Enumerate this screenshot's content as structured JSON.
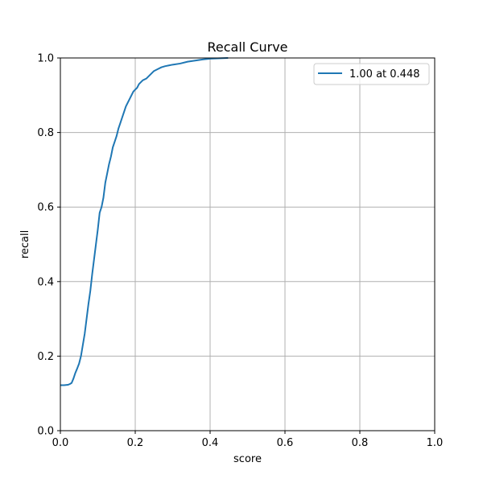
{
  "chart_data": {
    "type": "line",
    "title": "Recall Curve",
    "xlabel": "score",
    "ylabel": "recall",
    "xlim": [
      0.0,
      1.0
    ],
    "ylim": [
      0.0,
      1.0
    ],
    "grid": true,
    "legend_position": "top-right",
    "x_ticks": [
      "0.0",
      "0.2",
      "0.4",
      "0.6",
      "0.8",
      "1.0"
    ],
    "y_ticks": [
      "0.0",
      "0.2",
      "0.4",
      "0.6",
      "0.8",
      "1.0"
    ],
    "series": [
      {
        "name": "1.00 at 0.448",
        "color": "#1f77b4",
        "x": [
          0.0,
          0.01,
          0.02,
          0.025,
          0.03,
          0.035,
          0.04,
          0.045,
          0.05,
          0.055,
          0.06,
          0.065,
          0.07,
          0.075,
          0.08,
          0.085,
          0.09,
          0.095,
          0.1,
          0.105,
          0.11,
          0.115,
          0.12,
          0.125,
          0.13,
          0.135,
          0.14,
          0.145,
          0.15,
          0.155,
          0.16,
          0.165,
          0.17,
          0.175,
          0.18,
          0.185,
          0.19,
          0.195,
          0.2,
          0.205,
          0.21,
          0.22,
          0.23,
          0.24,
          0.25,
          0.26,
          0.27,
          0.28,
          0.29,
          0.3,
          0.32,
          0.34,
          0.36,
          0.38,
          0.4,
          0.42,
          0.448
        ],
        "y": [
          0.122,
          0.122,
          0.123,
          0.125,
          0.128,
          0.14,
          0.155,
          0.167,
          0.18,
          0.2,
          0.23,
          0.26,
          0.3,
          0.34,
          0.375,
          0.42,
          0.46,
          0.5,
          0.54,
          0.585,
          0.6,
          0.625,
          0.665,
          0.69,
          0.715,
          0.735,
          0.76,
          0.775,
          0.79,
          0.81,
          0.825,
          0.84,
          0.855,
          0.87,
          0.88,
          0.89,
          0.9,
          0.91,
          0.915,
          0.92,
          0.93,
          0.94,
          0.945,
          0.955,
          0.965,
          0.97,
          0.975,
          0.978,
          0.98,
          0.982,
          0.985,
          0.99,
          0.993,
          0.996,
          0.998,
          0.999,
          1.0
        ]
      }
    ]
  }
}
